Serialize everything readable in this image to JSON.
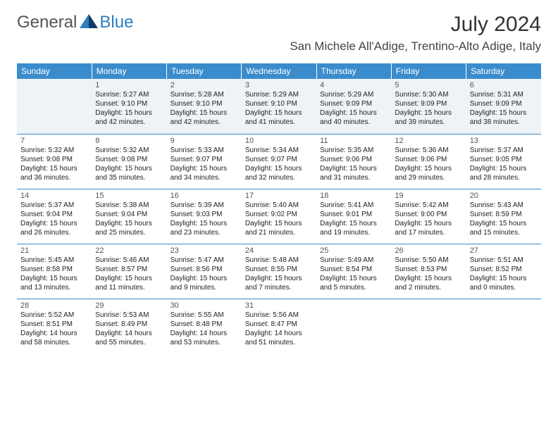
{
  "brand": {
    "text1": "General",
    "text2": "Blue"
  },
  "title": "July 2024",
  "location": "San Michele All'Adige, Trentino-Alto Adige, Italy",
  "colors": {
    "header_bg": "#3b8ccc",
    "header_text": "#ffffff",
    "row_border": "#3b8ccc",
    "shaded_row": "#eef3f8",
    "brand_gray": "#555555",
    "brand_blue": "#2c7fc1",
    "logo_dark": "#0e3a66",
    "logo_light": "#2c7fc1"
  },
  "day_headers": [
    "Sunday",
    "Monday",
    "Tuesday",
    "Wednesday",
    "Thursday",
    "Friday",
    "Saturday"
  ],
  "weeks": [
    [
      {
        "empty": true
      },
      {
        "n": "1",
        "sr": "5:27 AM",
        "ss": "9:10 PM",
        "dl": "15 hours and 42 minutes."
      },
      {
        "n": "2",
        "sr": "5:28 AM",
        "ss": "9:10 PM",
        "dl": "15 hours and 42 minutes."
      },
      {
        "n": "3",
        "sr": "5:29 AM",
        "ss": "9:10 PM",
        "dl": "15 hours and 41 minutes."
      },
      {
        "n": "4",
        "sr": "5:29 AM",
        "ss": "9:09 PM",
        "dl": "15 hours and 40 minutes."
      },
      {
        "n": "5",
        "sr": "5:30 AM",
        "ss": "9:09 PM",
        "dl": "15 hours and 39 minutes."
      },
      {
        "n": "6",
        "sr": "5:31 AM",
        "ss": "9:09 PM",
        "dl": "15 hours and 38 minutes."
      }
    ],
    [
      {
        "n": "7",
        "sr": "5:32 AM",
        "ss": "9:08 PM",
        "dl": "15 hours and 36 minutes."
      },
      {
        "n": "8",
        "sr": "5:32 AM",
        "ss": "9:08 PM",
        "dl": "15 hours and 35 minutes."
      },
      {
        "n": "9",
        "sr": "5:33 AM",
        "ss": "9:07 PM",
        "dl": "15 hours and 34 minutes."
      },
      {
        "n": "10",
        "sr": "5:34 AM",
        "ss": "9:07 PM",
        "dl": "15 hours and 32 minutes."
      },
      {
        "n": "11",
        "sr": "5:35 AM",
        "ss": "9:06 PM",
        "dl": "15 hours and 31 minutes."
      },
      {
        "n": "12",
        "sr": "5:36 AM",
        "ss": "9:06 PM",
        "dl": "15 hours and 29 minutes."
      },
      {
        "n": "13",
        "sr": "5:37 AM",
        "ss": "9:05 PM",
        "dl": "15 hours and 28 minutes."
      }
    ],
    [
      {
        "n": "14",
        "sr": "5:37 AM",
        "ss": "9:04 PM",
        "dl": "15 hours and 26 minutes."
      },
      {
        "n": "15",
        "sr": "5:38 AM",
        "ss": "9:04 PM",
        "dl": "15 hours and 25 minutes."
      },
      {
        "n": "16",
        "sr": "5:39 AM",
        "ss": "9:03 PM",
        "dl": "15 hours and 23 minutes."
      },
      {
        "n": "17",
        "sr": "5:40 AM",
        "ss": "9:02 PM",
        "dl": "15 hours and 21 minutes."
      },
      {
        "n": "18",
        "sr": "5:41 AM",
        "ss": "9:01 PM",
        "dl": "15 hours and 19 minutes."
      },
      {
        "n": "19",
        "sr": "5:42 AM",
        "ss": "9:00 PM",
        "dl": "15 hours and 17 minutes."
      },
      {
        "n": "20",
        "sr": "5:43 AM",
        "ss": "8:59 PM",
        "dl": "15 hours and 15 minutes."
      }
    ],
    [
      {
        "n": "21",
        "sr": "5:45 AM",
        "ss": "8:58 PM",
        "dl": "15 hours and 13 minutes."
      },
      {
        "n": "22",
        "sr": "5:46 AM",
        "ss": "8:57 PM",
        "dl": "15 hours and 11 minutes."
      },
      {
        "n": "23",
        "sr": "5:47 AM",
        "ss": "8:56 PM",
        "dl": "15 hours and 9 minutes."
      },
      {
        "n": "24",
        "sr": "5:48 AM",
        "ss": "8:55 PM",
        "dl": "15 hours and 7 minutes."
      },
      {
        "n": "25",
        "sr": "5:49 AM",
        "ss": "8:54 PM",
        "dl": "15 hours and 5 minutes."
      },
      {
        "n": "26",
        "sr": "5:50 AM",
        "ss": "8:53 PM",
        "dl": "15 hours and 2 minutes."
      },
      {
        "n": "27",
        "sr": "5:51 AM",
        "ss": "8:52 PM",
        "dl": "15 hours and 0 minutes."
      }
    ],
    [
      {
        "n": "28",
        "sr": "5:52 AM",
        "ss": "8:51 PM",
        "dl": "14 hours and 58 minutes."
      },
      {
        "n": "29",
        "sr": "5:53 AM",
        "ss": "8:49 PM",
        "dl": "14 hours and 55 minutes."
      },
      {
        "n": "30",
        "sr": "5:55 AM",
        "ss": "8:48 PM",
        "dl": "14 hours and 53 minutes."
      },
      {
        "n": "31",
        "sr": "5:56 AM",
        "ss": "8:47 PM",
        "dl": "14 hours and 51 minutes."
      },
      {
        "empty": true
      },
      {
        "empty": true
      },
      {
        "empty": true
      }
    ]
  ],
  "labels": {
    "sunrise": "Sunrise:",
    "sunset": "Sunset:",
    "daylight": "Daylight:"
  }
}
